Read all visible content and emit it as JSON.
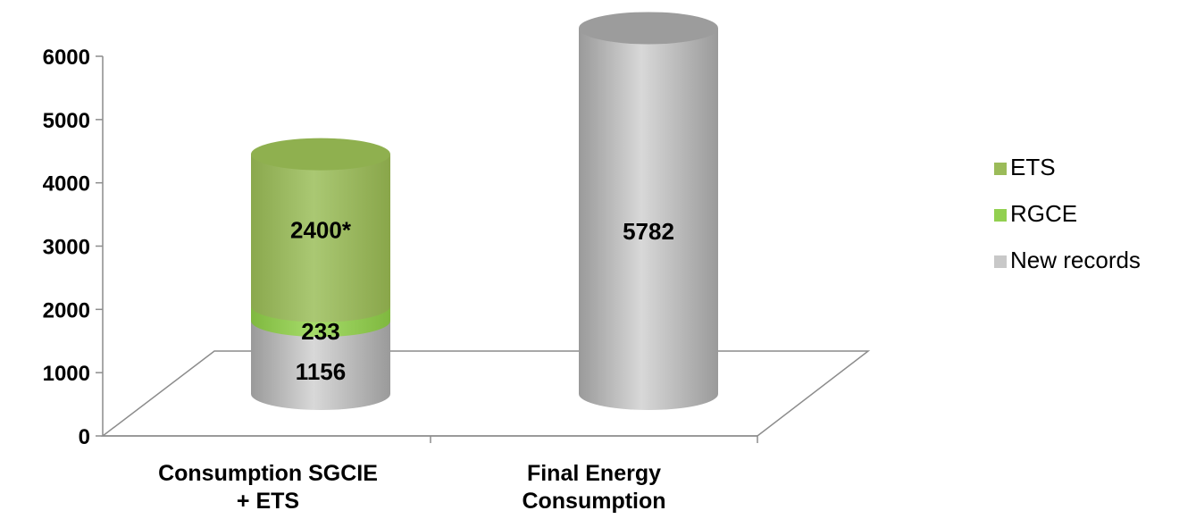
{
  "chart_data": {
    "type": "bar",
    "style": "3d-cylinder-stacked",
    "categories": [
      [
        "Consumption SGCIE",
        "+ ETS"
      ],
      [
        "Final Energy",
        "Consumption"
      ]
    ],
    "series": [
      {
        "name": "New records",
        "values": [
          1156,
          5782
        ],
        "labels": [
          "1156",
          "5782"
        ],
        "color": "#c8c8c8"
      },
      {
        "name": "RGCE",
        "values": [
          233,
          0
        ],
        "labels": [
          "233",
          ""
        ],
        "color": "#92d050"
      },
      {
        "name": "ETS",
        "values": [
          2400,
          0
        ],
        "labels": [
          "2400*",
          ""
        ],
        "color": "#9bbb59"
      }
    ],
    "legend_order": [
      "ETS",
      "RGCE",
      "New records"
    ],
    "legend_position": "right",
    "ylim": [
      0,
      6000
    ],
    "yticks": [
      0,
      1000,
      2000,
      3000,
      4000,
      5000,
      6000
    ],
    "grid": false,
    "title": "",
    "xlabel": "",
    "ylabel": ""
  }
}
